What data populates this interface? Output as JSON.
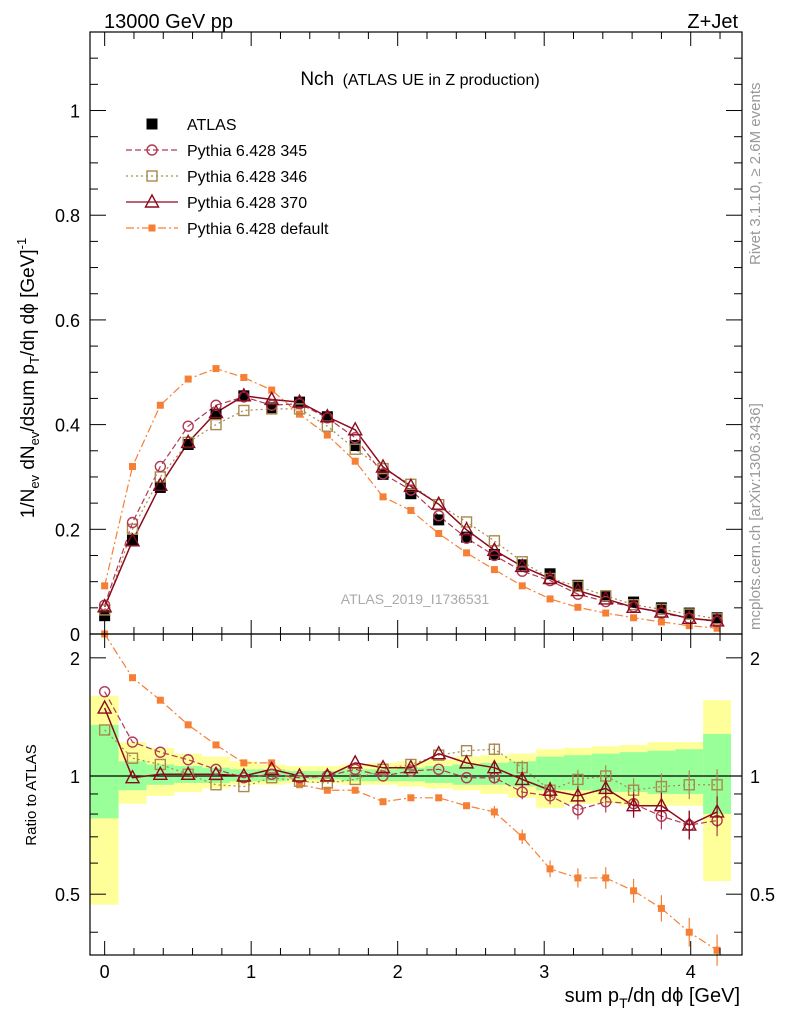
{
  "header": {
    "left": "13000 GeV pp",
    "right": "Z+Jet"
  },
  "side_labels": {
    "rivet": "Rivet 3.1.10, ≥ 2.6M events",
    "mcplots": "mcplots.cern.ch [arXiv:1306.3436]"
  },
  "colors": {
    "atlas": "#000000",
    "p345": "#b03a56",
    "p346": "#a88a4e",
    "p370": "#8b0a1e",
    "pdefault": "#f57f35",
    "band_outer": "#ffff99",
    "band_inner": "#99ff99"
  },
  "chart_data": {
    "type": "line",
    "title": "Nch",
    "subtitle": "(ATLAS UE in Z production)",
    "analysis_id": "ATLAS_2019_I1736531",
    "xlabel": "sum p_T/dη dϕ [GeV]",
    "ylabel": "1/N_ev dN_ev/dsum p_T/dη dϕ [GeV]^-1",
    "ratio_ylabel": "Ratio to ATLAS",
    "xlim": [
      -0.1,
      4.35
    ],
    "ylim": [
      0,
      1.15
    ],
    "ratio_ylim": [
      0.35,
      2.3
    ],
    "x_ticks": [
      "0",
      "1",
      "2",
      "3",
      "4"
    ],
    "y_ticks": [
      "0",
      "0.2",
      "0.4",
      "0.6",
      "0.8",
      "1"
    ],
    "ratio_ticks": [
      "0.5",
      "1",
      "2"
    ],
    "x": [
      0.0,
      0.19,
      0.38,
      0.57,
      0.76,
      0.95,
      1.14,
      1.33,
      1.52,
      1.71,
      1.9,
      2.09,
      2.28,
      2.47,
      2.66,
      2.85,
      3.04,
      3.23,
      3.42,
      3.61,
      3.8,
      3.99,
      4.18
    ],
    "series": [
      {
        "name": "ATLAS",
        "key": "atlas",
        "values": [
          0.035,
          0.18,
          0.28,
          0.362,
          0.42,
          0.455,
          0.432,
          0.443,
          0.415,
          0.36,
          0.305,
          0.268,
          0.218,
          0.185,
          0.152,
          0.132,
          0.115,
          0.093,
          0.072,
          0.061,
          0.05,
          0.04,
          0.031
        ]
      },
      {
        "name": "Pythia 6.428 345",
        "key": "p345",
        "values": [
          0.055,
          0.213,
          0.32,
          0.397,
          0.437,
          0.453,
          0.437,
          0.44,
          0.413,
          0.375,
          0.306,
          0.275,
          0.226,
          0.183,
          0.15,
          0.12,
          0.102,
          0.076,
          0.062,
          0.052,
          0.04,
          0.03,
          0.024
        ]
      },
      {
        "name": "Pythia 6.428 346",
        "key": "p346",
        "values": [
          0.046,
          0.2,
          0.3,
          0.366,
          0.4,
          0.427,
          0.43,
          0.43,
          0.397,
          0.353,
          0.316,
          0.286,
          0.247,
          0.214,
          0.178,
          0.138,
          0.106,
          0.091,
          0.073,
          0.056,
          0.047,
          0.038,
          0.029
        ]
      },
      {
        "name": "Pythia 6.428 370",
        "key": "p370",
        "values": [
          0.052,
          0.178,
          0.284,
          0.366,
          0.423,
          0.455,
          0.448,
          0.443,
          0.415,
          0.39,
          0.319,
          0.282,
          0.248,
          0.199,
          0.16,
          0.129,
          0.106,
          0.083,
          0.067,
          0.051,
          0.042,
          0.03,
          0.025
        ]
      },
      {
        "name": "Pythia 6.428 default",
        "key": "pdefault",
        "values": [
          0.092,
          0.32,
          0.437,
          0.487,
          0.507,
          0.49,
          0.466,
          0.42,
          0.38,
          0.33,
          0.262,
          0.236,
          0.192,
          0.155,
          0.123,
          0.092,
          0.067,
          0.051,
          0.04,
          0.031,
          0.023,
          0.016,
          0.011
        ]
      }
    ],
    "ratio": {
      "atlas_band_outer": [
        [
          0.47,
          1.6
        ],
        [
          0.85,
          1.22
        ],
        [
          0.89,
          1.18
        ],
        [
          0.91,
          1.14
        ],
        [
          0.93,
          1.12
        ],
        [
          0.95,
          1.09
        ],
        [
          0.95,
          1.07
        ],
        [
          0.96,
          1.06
        ],
        [
          0.96,
          1.06
        ],
        [
          0.95,
          1.07
        ],
        [
          0.95,
          1.08
        ],
        [
          0.94,
          1.09
        ],
        [
          0.93,
          1.1
        ],
        [
          0.92,
          1.12
        ],
        [
          0.9,
          1.13
        ],
        [
          0.88,
          1.14
        ],
        [
          0.83,
          1.17
        ],
        [
          0.85,
          1.18
        ],
        [
          0.85,
          1.19
        ],
        [
          0.84,
          1.2
        ],
        [
          0.84,
          1.22
        ],
        [
          0.84,
          1.22
        ],
        [
          0.54,
          1.56
        ]
      ],
      "atlas_band_inner": [
        [
          0.78,
          1.35
        ],
        [
          0.92,
          1.09
        ],
        [
          0.95,
          1.07
        ],
        [
          0.96,
          1.06
        ],
        [
          0.96,
          1.05
        ],
        [
          0.97,
          1.04
        ],
        [
          0.97,
          1.04
        ],
        [
          0.98,
          1.03
        ],
        [
          0.98,
          1.03
        ],
        [
          0.97,
          1.04
        ],
        [
          0.97,
          1.04
        ],
        [
          0.97,
          1.05
        ],
        [
          0.96,
          1.06
        ],
        [
          0.95,
          1.07
        ],
        [
          0.95,
          1.08
        ],
        [
          0.94,
          1.09
        ],
        [
          0.92,
          1.12
        ],
        [
          0.92,
          1.13
        ],
        [
          0.91,
          1.14
        ],
        [
          0.91,
          1.15
        ],
        [
          0.9,
          1.16
        ],
        [
          0.9,
          1.17
        ],
        [
          0.8,
          1.28
        ]
      ],
      "series": [
        {
          "key": "p345",
          "values": [
            1.64,
            1.22,
            1.15,
            1.1,
            1.04,
            0.99,
            1.01,
            0.99,
            1.0,
            1.04,
            1.0,
            1.03,
            1.04,
            0.99,
            0.99,
            0.91,
            0.89,
            0.82,
            0.86,
            0.85,
            0.79,
            0.75,
            0.77
          ]
        },
        {
          "key": "p346",
          "values": [
            1.31,
            1.11,
            1.07,
            1.01,
            0.95,
            0.94,
            0.99,
            0.97,
            0.96,
            0.98,
            1.04,
            1.07,
            1.13,
            1.16,
            1.17,
            1.05,
            0.92,
            0.98,
            1.0,
            0.92,
            0.94,
            0.95,
            0.95
          ]
        },
        {
          "key": "p370",
          "values": [
            1.49,
            0.99,
            1.01,
            1.01,
            1.01,
            1.0,
            1.04,
            1.0,
            1.0,
            1.08,
            1.05,
            1.05,
            1.14,
            1.08,
            1.05,
            0.98,
            0.92,
            0.89,
            0.93,
            0.84,
            0.84,
            0.75,
            0.81
          ]
        },
        {
          "key": "pdefault",
          "values": [
            2.3,
            1.78,
            1.56,
            1.35,
            1.2,
            1.08,
            1.08,
            0.95,
            0.92,
            0.92,
            0.86,
            0.88,
            0.88,
            0.84,
            0.81,
            0.7,
            0.58,
            0.55,
            0.55,
            0.51,
            0.46,
            0.4,
            0.36
          ]
        }
      ]
    }
  }
}
